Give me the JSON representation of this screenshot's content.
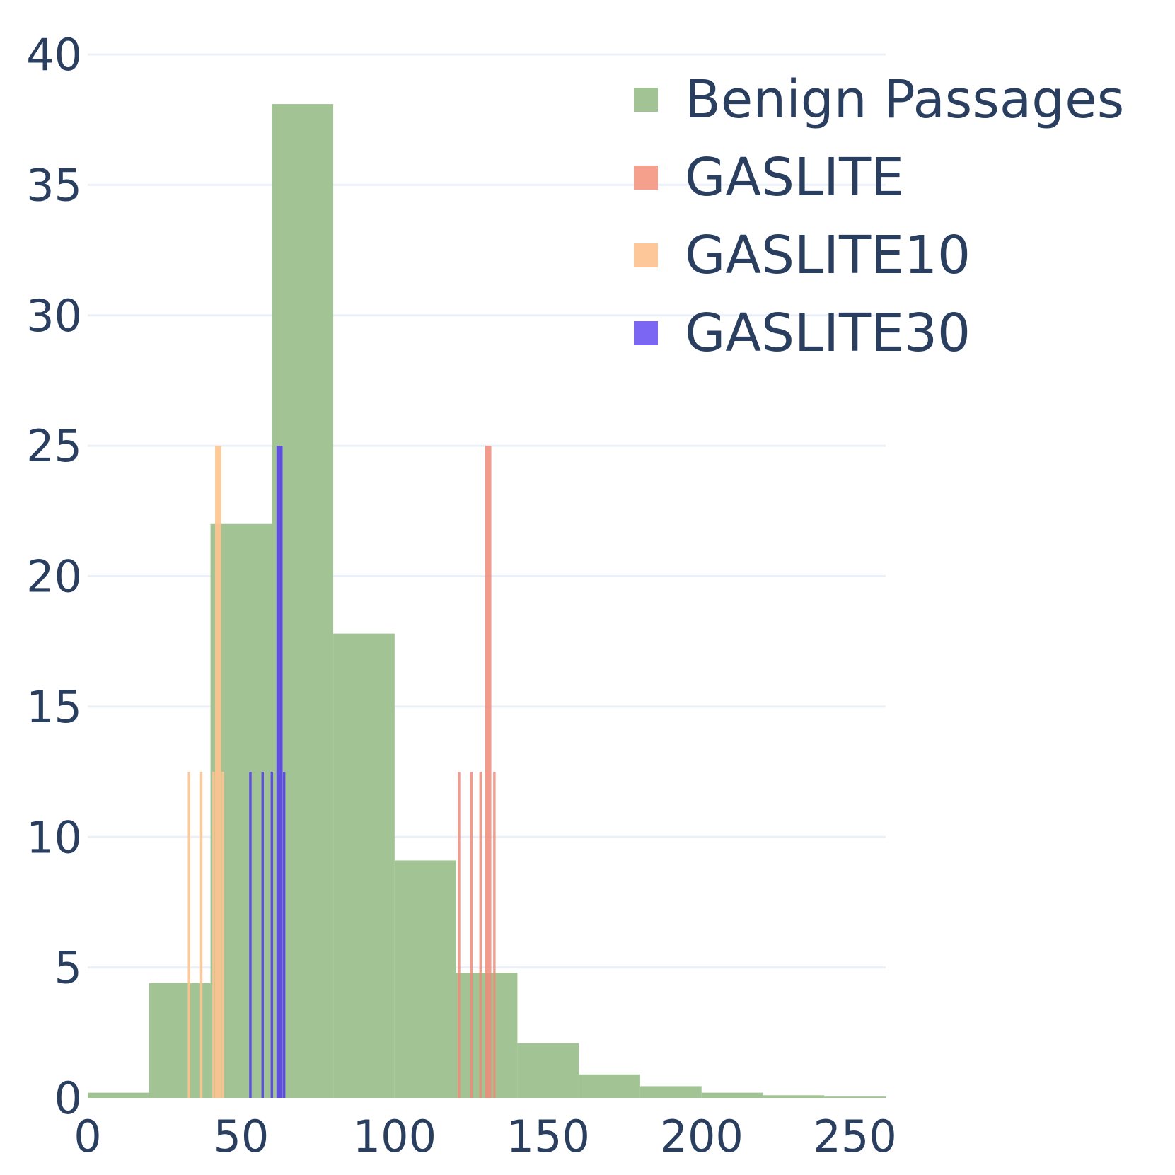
{
  "chart_data": {
    "type": "histogram",
    "title": "",
    "xlabel": "",
    "ylabel": "",
    "xlim": [
      0,
      260
    ],
    "ylim": [
      0,
      40
    ],
    "x_ticks": [
      "0",
      "50",
      "100",
      "150",
      "200",
      "250"
    ],
    "y_ticks": [
      "0",
      "5",
      "10",
      "15",
      "20",
      "25",
      "30",
      "35",
      "40"
    ],
    "grid": "horizontal",
    "legend_position": "top-right",
    "histogram": {
      "name": "Benign Passages",
      "color": "#a2c495",
      "bins": [
        {
          "x0": 0,
          "x1": 20,
          "value": 0.2
        },
        {
          "x0": 20,
          "x1": 40,
          "value": 4.4
        },
        {
          "x0": 40,
          "x1": 60,
          "value": 22
        },
        {
          "x0": 60,
          "x1": 80,
          "value": 38.1
        },
        {
          "x0": 80,
          "x1": 100,
          "value": 17.8
        },
        {
          "x0": 100,
          "x1": 120,
          "value": 9.1
        },
        {
          "x0": 120,
          "x1": 140,
          "value": 4.8
        },
        {
          "x0": 140,
          "x1": 160,
          "value": 2.1
        },
        {
          "x0": 160,
          "x1": 180,
          "value": 0.9
        },
        {
          "x0": 180,
          "x1": 200,
          "value": 0.45
        },
        {
          "x0": 200,
          "x1": 220,
          "value": 0.2
        },
        {
          "x0": 220,
          "x1": 240,
          "value": 0.1
        },
        {
          "x0": 240,
          "x1": 260,
          "value": 0.05
        }
      ]
    },
    "series": [
      {
        "name": "GASLITE",
        "color": "#f08a78",
        "opacity": 0.85,
        "bars": [
          {
            "x": 121,
            "width": 0.8,
            "value": 12.5
          },
          {
            "x": 125,
            "width": 0.8,
            "value": 12.5
          },
          {
            "x": 128,
            "width": 0.8,
            "value": 12.5
          },
          {
            "x": 130.5,
            "width": 2.0,
            "value": 25
          },
          {
            "x": 132.5,
            "width": 0.8,
            "value": 12.5
          }
        ]
      },
      {
        "name": "GASLITE10",
        "color": "#fec48f",
        "opacity": 0.9,
        "bars": [
          {
            "x": 33,
            "width": 0.8,
            "value": 12.5
          },
          {
            "x": 37,
            "width": 0.8,
            "value": 12.5
          },
          {
            "x": 41,
            "width": 0.8,
            "value": 12.5
          },
          {
            "x": 42.5,
            "width": 2.0,
            "value": 25
          },
          {
            "x": 44,
            "width": 0.8,
            "value": 12.5
          }
        ]
      },
      {
        "name": "GASLITE30",
        "color": "#5b4ae0",
        "opacity": 0.95,
        "bars": [
          {
            "x": 53,
            "width": 0.8,
            "value": 12.5
          },
          {
            "x": 57,
            "width": 0.8,
            "value": 12.5
          },
          {
            "x": 60,
            "width": 0.8,
            "value": 12.5
          },
          {
            "x": 62.5,
            "width": 2.0,
            "value": 25
          },
          {
            "x": 64,
            "width": 0.8,
            "value": 12.5
          }
        ]
      }
    ],
    "legend_colors": {
      "Benign Passages": "#a2c495",
      "GASLITE": "#f4a08d",
      "GASLITE10": "#fec79a",
      "GASLITE30": "#7a66f2"
    }
  }
}
